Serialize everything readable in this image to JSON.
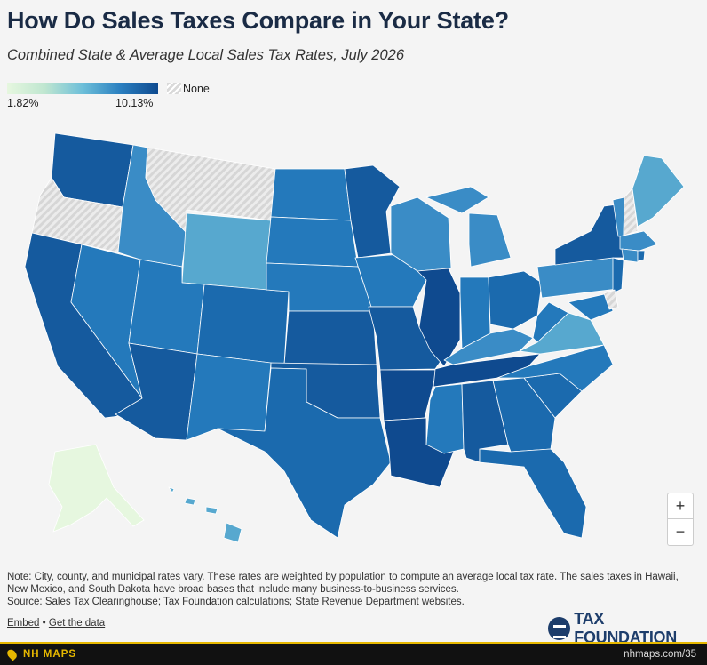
{
  "header": {
    "title": "How Do Sales Taxes Compare in Your State?",
    "subtitle": "Combined State & Average Local Sales Tax Rates, July 2026"
  },
  "legend": {
    "min_label": "1.82%",
    "max_label": "10.13%",
    "none_label": "None",
    "color_low": "#e6f7df",
    "color_high": "#0f4a8f",
    "none_pattern_color": "#d9d9d9"
  },
  "zoom": {
    "in_label": "+",
    "out_label": "−"
  },
  "note": {
    "line1": "Note: City, county, and municipal rates vary. These rates are weighted by population to compute an average local tax rate. The sales taxes in Hawaii, New Mexico, and South Dakota have broad bases that include many business-to-business services.",
    "source": "Source: Sales Tax Clearinghouse; Tax Foundation calculations; State Revenue Department websites."
  },
  "links": {
    "embed": "Embed",
    "separator": "•",
    "get_data": "Get the data"
  },
  "logo": {
    "text": "TAX FOUNDATION"
  },
  "footer": {
    "brand": "NH MAPS",
    "url": "nhmaps.com/35"
  },
  "map": {
    "colors": {
      "c1": "#0f4a8f",
      "c2": "#155a9e",
      "c3": "#1b6aae",
      "c4": "#2479bb",
      "c5": "#3a8cc6",
      "c6": "#57a8cf",
      "c7": "#e6f7df",
      "none": "#d9d9d9"
    }
  }
}
